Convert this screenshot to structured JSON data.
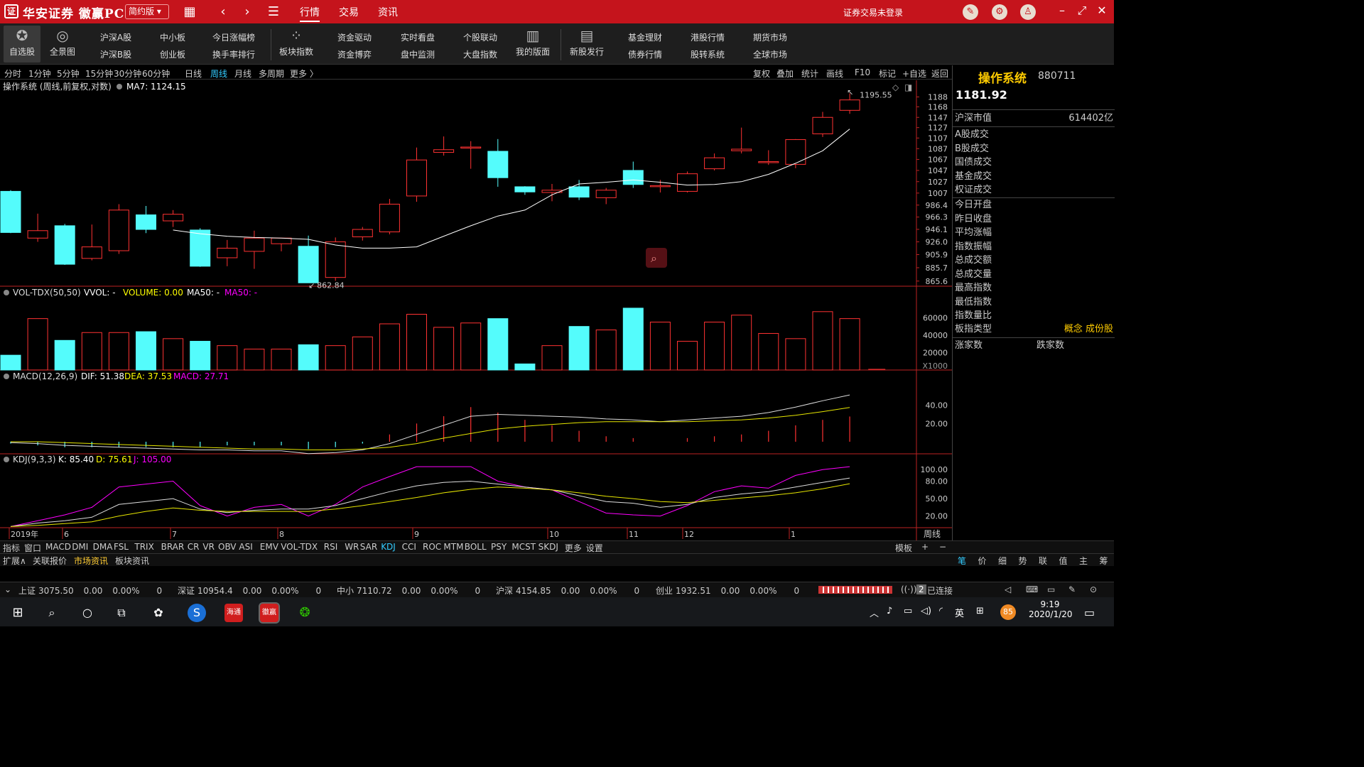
{
  "titlebar": {
    "logo": "证",
    "brand": "华安证券 徽赢PC",
    "edition": "简约版",
    "menus": [
      "行情",
      "交易",
      "资讯"
    ],
    "login": "证券交易未登录"
  },
  "toolbar": {
    "fav": "自选股",
    "global": "全景图",
    "pairs": [
      [
        "沪深A股",
        "沪深B股"
      ],
      [
        "中小板",
        "创业板"
      ],
      [
        "今日涨幅榜",
        "换手率排行"
      ]
    ],
    "sector": "板块指数",
    "pairs2": [
      [
        "资金驱动",
        "资金博弈"
      ],
      [
        "实时看盘",
        "盘中监测"
      ],
      [
        "个股联动",
        "大盘指数"
      ]
    ],
    "mypage": "我的版面",
    "ipo": "新股发行",
    "pairs3": [
      [
        "基金理财",
        "债券行情"
      ],
      [
        "港股行情",
        "股转系统"
      ],
      [
        "期货市场",
        "全球市场"
      ]
    ]
  },
  "periods": [
    "分时",
    "1分钟",
    "5分钟",
    "15分钟",
    "30分钟",
    "60分钟",
    "日线",
    "周线",
    "月线",
    "多周期",
    "更多 〉"
  ],
  "right_tools": [
    "复权",
    "叠加",
    "统计",
    "画线",
    "F10",
    "标记",
    "+自选",
    "返回"
  ],
  "chart": {
    "main_title": "操作系统 (周线,前复权,对数)",
    "ma_label": "MA7: 1124.15",
    "high_label": "1195.55",
    "low_label": "862.84",
    "price_ticks": [
      "1188",
      "1168",
      "1147",
      "1127",
      "1107",
      "1087",
      "1067",
      "1047",
      "1027",
      "1007",
      "986.4",
      "966.3",
      "946.1",
      "926.0",
      "905.9",
      "885.7",
      "865.6"
    ],
    "vol_title": "VOL-TDX(50,50)",
    "vol_vvol": "VVOL: -",
    "vol_volume": "VOLUME: 0.00",
    "vol_ma50w": "MA50: -",
    "vol_ma50m": "MA50: -",
    "vol_ticks": [
      "60000",
      "40000",
      "20000"
    ],
    "vol_unit": "X1000",
    "macd_title": "MACD(12,26,9)",
    "macd_dif": "DIF: 51.38",
    "macd_dea": "DEA: 37.53",
    "macd_val": "MACD: 27.71",
    "macd_ticks": [
      "40.00",
      "20.00"
    ],
    "kdj_title": "KDJ(9,3,3)",
    "kdj_k": "K: 85.40",
    "kdj_d": "D: 75.61",
    "kdj_j": "J: 105.00",
    "kdj_ticks": [
      "100.00",
      "80.00",
      "50.00",
      "20.00"
    ],
    "date_labels": [
      "2019年",
      "6",
      "7",
      "8",
      "9",
      "10",
      "11",
      "12",
      "1"
    ],
    "period_label": "周线"
  },
  "chart_data": {
    "type": "candlestick",
    "candles": [
      {
        "o": 1010,
        "h": 1012,
        "l": 940,
        "c": 941
      },
      {
        "o": 932,
        "h": 972,
        "l": 926,
        "c": 944
      },
      {
        "o": 952,
        "h": 955,
        "l": 890,
        "c": 891
      },
      {
        "o": 900,
        "h": 954,
        "l": 897,
        "c": 918
      },
      {
        "o": 912,
        "h": 988,
        "l": 907,
        "c": 978
      },
      {
        "o": 970,
        "h": 985,
        "l": 940,
        "c": 946
      },
      {
        "o": 960,
        "h": 978,
        "l": 950,
        "c": 971
      },
      {
        "o": 945,
        "h": 948,
        "l": 887,
        "c": 888
      },
      {
        "o": 901,
        "h": 929,
        "l": 888,
        "c": 916
      },
      {
        "o": 911,
        "h": 944,
        "l": 884,
        "c": 932
      },
      {
        "o": 923,
        "h": 932,
        "l": 911,
        "c": 932
      },
      {
        "o": 919,
        "h": 936,
        "l": 862.84,
        "c": 863
      },
      {
        "o": 871,
        "h": 933,
        "l": 866,
        "c": 926
      },
      {
        "o": 934,
        "h": 950,
        "l": 928,
        "c": 946
      },
      {
        "o": 942,
        "h": 997,
        "l": 938,
        "c": 988
      },
      {
        "o": 1002,
        "h": 1089,
        "l": 992,
        "c": 1066
      },
      {
        "o": 1080,
        "h": 1110,
        "l": 1074,
        "c": 1085
      },
      {
        "o": 1090,
        "h": 1101,
        "l": 1050,
        "c": 1090
      },
      {
        "o": 1082,
        "h": 1105,
        "l": 1018,
        "c": 1034
      },
      {
        "o": 1018,
        "h": 1019,
        "l": 1004,
        "c": 1009
      },
      {
        "o": 1008,
        "h": 1023,
        "l": 993,
        "c": 1012
      },
      {
        "o": 1018,
        "h": 1030,
        "l": 995,
        "c": 1000
      },
      {
        "o": 999,
        "h": 1016,
        "l": 988,
        "c": 1012
      },
      {
        "o": 1047,
        "h": 1063,
        "l": 1016,
        "c": 1022
      },
      {
        "o": 1020,
        "h": 1030,
        "l": 1008,
        "c": 1020
      },
      {
        "o": 1010,
        "h": 1045,
        "l": 1008,
        "c": 1041
      },
      {
        "o": 1050,
        "h": 1078,
        "l": 1047,
        "c": 1070
      },
      {
        "o": 1083,
        "h": 1127,
        "l": 1078,
        "c": 1086
      },
      {
        "o": 1063,
        "h": 1084,
        "l": 1057,
        "c": 1063
      },
      {
        "o": 1058,
        "h": 1105,
        "l": 1051,
        "c": 1104
      },
      {
        "o": 1115,
        "h": 1158,
        "l": 1109,
        "c": 1147
      },
      {
        "o": 1161,
        "h": 1195.55,
        "l": 1154,
        "c": 1181.92
      }
    ],
    "ma7": [
      null,
      null,
      null,
      null,
      null,
      null,
      945,
      939,
      935,
      933,
      932,
      930,
      921,
      916,
      916,
      918,
      935,
      952,
      968,
      978,
      1004,
      1023,
      1026,
      1030,
      1026,
      1021,
      1022,
      1027,
      1040,
      1060,
      1083,
      1124.15
    ],
    "volumes": [
      17000,
      59000,
      34000,
      43000,
      43000,
      44000,
      36000,
      33000,
      28000,
      24000,
      24000,
      29000,
      28000,
      38000,
      53000,
      64000,
      49000,
      54000,
      59000,
      7000,
      28000,
      50000,
      46000,
      71000,
      55000,
      33000,
      55000,
      63000,
      42000,
      36000,
      67000,
      59000
    ],
    "macd_dif": [
      -1,
      -2,
      -4,
      -5,
      -6,
      -7,
      -8,
      -9,
      -9,
      -10,
      -10,
      -13,
      -12,
      -9,
      -2,
      8,
      18,
      28,
      30,
      29,
      28,
      27,
      25,
      24,
      22,
      24,
      26,
      28,
      32,
      38,
      45,
      51.38
    ],
    "macd_dea": [
      0,
      0,
      -1,
      -2,
      -3,
      -4,
      -5,
      -6,
      -7,
      -8,
      -8,
      -9,
      -9,
      -8,
      -6,
      -2,
      4,
      9,
      14,
      17,
      19,
      21,
      22,
      22,
      22,
      22,
      23,
      24,
      26,
      29,
      33,
      37.53
    ],
    "kdj_k": [
      2,
      8,
      12,
      18,
      40,
      45,
      50,
      32,
      26,
      30,
      32,
      32,
      38,
      50,
      62,
      72,
      78,
      80,
      75,
      70,
      65,
      55,
      45,
      42,
      35,
      40,
      52,
      58,
      62,
      70,
      78,
      85.4
    ],
    "kdj_d": [
      2,
      4,
      7,
      10,
      20,
      28,
      34,
      30,
      28,
      28,
      28,
      28,
      32,
      38,
      45,
      52,
      60,
      66,
      70,
      68,
      65,
      60,
      54,
      50,
      45,
      43,
      47,
      51,
      55,
      60,
      67,
      75.61
    ],
    "kdj_j": [
      2,
      12,
      22,
      35,
      70,
      75,
      80,
      38,
      20,
      35,
      40,
      20,
      40,
      70,
      88,
      105,
      105,
      105,
      80,
      70,
      65,
      45,
      25,
      22,
      20,
      38,
      62,
      72,
      68,
      90,
      100,
      105.0
    ]
  },
  "right_panel": {
    "name": "操作系统",
    "code": "880711",
    "price": "1181.92",
    "mcap_label": "沪深市值",
    "mcap_value": "614402亿",
    "rows1": [
      "A股成交",
      "B股成交",
      "国债成交",
      "基金成交",
      "权证成交"
    ],
    "rows2": [
      "今日开盘",
      "昨日收盘",
      "平均涨幅",
      "指数振幅",
      "总成交额",
      "总成交量",
      "最高指数",
      "最低指数",
      "指数量比"
    ],
    "sector_type_label": "板指类型",
    "sector_type_value": "概念 成份股",
    "up_count": "涨家数",
    "down_count": "跌家数"
  },
  "indicator_tabs": [
    "指标",
    "窗口",
    "MACD",
    "DMI",
    "DMA",
    "FSL",
    "TRIX",
    "BRAR",
    "CR",
    "VR",
    "OBV",
    "ASI",
    "EMV",
    "VOL-TDX",
    "RSI",
    "WR",
    "SAR",
    "KDJ",
    "CCI",
    "ROC",
    "MTM",
    "BOLL",
    "PSY",
    "MCST",
    "SKDJ",
    "更多",
    "设置"
  ],
  "template_label": "模板",
  "info_tabs": [
    "扩展∧",
    "关联报价",
    "市场资讯",
    "板块资讯"
  ],
  "rp_tabs": [
    "笔",
    "价",
    "细",
    "势",
    "联",
    "值",
    "主",
    "筹"
  ],
  "status": [
    {
      "name": "上证",
      "val": "3075.50",
      "chg": "0.00",
      "pct": "0.00%",
      "vol": "0"
    },
    {
      "name": "深证",
      "val": "10954.4",
      "chg": "0.00",
      "pct": "0.00%",
      "vol": "0"
    },
    {
      "name": "中小",
      "val": "7110.72",
      "chg": "0.00",
      "pct": "0.00%",
      "vol": "0"
    },
    {
      "name": "沪深",
      "val": "4154.85",
      "chg": "0.00",
      "pct": "0.00%",
      "vol": "0"
    },
    {
      "name": "创业",
      "val": "1932.51",
      "chg": "0.00",
      "pct": "0.00%",
      "vol": "0"
    }
  ],
  "connection": "已连接",
  "conn_count": "2",
  "taskbar": {
    "time": "9:19",
    "date": "2020/1/20",
    "ime": "英",
    "badge": "85",
    "app1": "海通",
    "app2": "徽赢"
  },
  "colors": {
    "up": "#ff3232",
    "down": "#54fcfc",
    "ma": "#ffffff",
    "dea": "#e6e600",
    "j": "#ff00ff",
    "title_bg": "#c5141c"
  }
}
